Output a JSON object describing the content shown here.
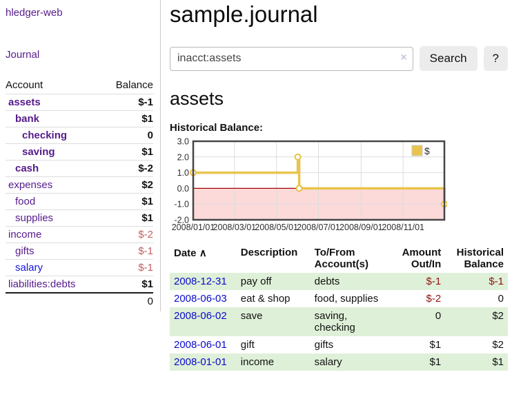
{
  "sidebar": {
    "brand": "hledger-web",
    "nav_journal": "Journal",
    "table": {
      "headers": {
        "account": "Account",
        "balance": "Balance"
      },
      "rows": [
        {
          "account": "assets",
          "indent": 1,
          "bold": true,
          "link_color": "purple",
          "balance": "$-1",
          "balance_class": "neg-strong"
        },
        {
          "account": "bank",
          "indent": 2,
          "bold": true,
          "link_color": "purple",
          "balance": "$1",
          "balance_class": "pos"
        },
        {
          "account": "checking",
          "indent": 3,
          "bold": true,
          "link_color": "purple",
          "balance": "0",
          "balance_class": "pos"
        },
        {
          "account": "saving",
          "indent": 3,
          "bold": true,
          "link_color": "purple",
          "balance": "$1",
          "balance_class": "pos"
        },
        {
          "account": "cash",
          "indent": 2,
          "bold": true,
          "link_color": "purple",
          "balance": "$-2",
          "balance_class": "neg-strong"
        },
        {
          "account": "expenses",
          "indent": 1,
          "bold": false,
          "link_color": "purple",
          "balance": "$2",
          "balance_class": "pos"
        },
        {
          "account": "food",
          "indent": 2,
          "bold": false,
          "link_color": "purple",
          "balance": "$1",
          "balance_class": "pos"
        },
        {
          "account": "supplies",
          "indent": 2,
          "bold": false,
          "link_color": "purple",
          "balance": "$1",
          "balance_class": "pos"
        },
        {
          "account": "income",
          "indent": 1,
          "bold": false,
          "link_color": "purple",
          "balance": "$-2",
          "balance_class": "neg-weak"
        },
        {
          "account": "gifts",
          "indent": 2,
          "bold": false,
          "link_color": "purple",
          "balance": "$-1",
          "balance_class": "neg-weak"
        },
        {
          "account": "salary",
          "indent": 2,
          "bold": false,
          "link_color": "blue",
          "balance": "$-1",
          "balance_class": "neg-weak"
        },
        {
          "account": "liabilities:debts",
          "indent": 1,
          "bold": false,
          "link_color": "purple",
          "balance": "$1",
          "balance_class": "pos"
        }
      ],
      "total": "0"
    }
  },
  "main": {
    "title": "sample.journal",
    "search": {
      "value": "inacct:assets",
      "clear_icon": "×",
      "button_label": "Search",
      "help_label": "?"
    },
    "account_heading": "assets",
    "chart_label": "Historical Balance:"
  },
  "chart_data": {
    "type": "line",
    "title": "Historical Balance",
    "step": true,
    "series": [
      {
        "name": "$",
        "color": "#e9c44d",
        "points": [
          [
            "2008-01-01",
            1
          ],
          [
            "2008-06-01",
            2
          ],
          [
            "2008-06-03",
            0
          ],
          [
            "2008-12-31",
            -1
          ]
        ]
      }
    ],
    "ylim": [
      -2,
      3
    ],
    "yticks": [
      "3.0",
      "2.0",
      "1.0",
      "0.0",
      "-1.0",
      "-2.0"
    ],
    "ytick_values": [
      3,
      2,
      1,
      0,
      -1,
      -2
    ],
    "xticks": [
      "2008/01/01",
      "2008/03/01",
      "2008/05/01",
      "2008/07/01",
      "2008/09/01",
      "2008/11/01"
    ],
    "x_range": [
      "2008-01-01",
      "2008-12-31"
    ],
    "grid": true,
    "legend_position": "top-right",
    "negative_region_color": "#fcdada",
    "zero_line_color": "#a20000"
  },
  "register": {
    "headers": {
      "date": "Date",
      "sort_icon": "∧",
      "description": "Description",
      "accounts": "To/From Account(s)",
      "amount": "Amount Out/In",
      "balance": "Historical Balance"
    },
    "rows": [
      {
        "date": "2008-12-31",
        "description": "pay off",
        "accounts": "debts",
        "amount": "$-1",
        "amount_neg": true,
        "balance": "$-1",
        "balance_neg": true,
        "striped": true
      },
      {
        "date": "2008-06-03",
        "description": "eat & shop",
        "accounts": "food, supplies",
        "amount": "$-2",
        "amount_neg": true,
        "balance": "0",
        "balance_neg": false,
        "striped": false
      },
      {
        "date": "2008-06-02",
        "description": "save",
        "accounts": "saving, checking",
        "amount": "0",
        "amount_neg": false,
        "balance": "$2",
        "balance_neg": false,
        "striped": true
      },
      {
        "date": "2008-06-01",
        "description": "gift",
        "accounts": "gifts",
        "amount": "$1",
        "amount_neg": false,
        "balance": "$2",
        "balance_neg": false,
        "striped": false
      },
      {
        "date": "2008-01-01",
        "description": "income",
        "accounts": "salary",
        "amount": "$1",
        "amount_neg": false,
        "balance": "$1",
        "balance_neg": false,
        "striped": true
      }
    ]
  }
}
